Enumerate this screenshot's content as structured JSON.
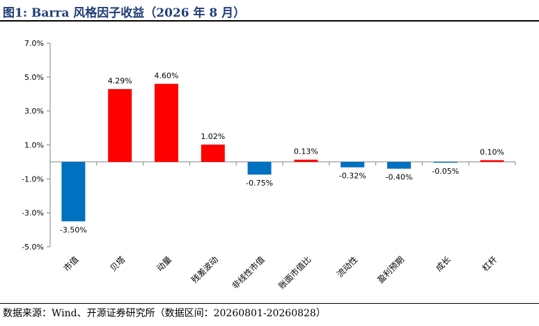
{
  "header": {
    "title": "图1:  Barra 风格因子收益（2026 年 8 月）"
  },
  "footer": {
    "source": "数据来源：Wind、开源证券研究所（数据区间：20260801-20260828）"
  },
  "colors": {
    "positive": "#ff0000",
    "negative": "#0070c0",
    "axis": "#808080"
  },
  "chart_data": {
    "type": "bar",
    "categories": [
      "市值",
      "贝塔",
      "动量",
      "残差波动",
      "非线性市值",
      "账面市值比",
      "流动性",
      "盈利预期",
      "成长",
      "杠杆"
    ],
    "values": [
      -3.5,
      4.29,
      4.6,
      1.02,
      -0.75,
      0.13,
      -0.32,
      -0.4,
      -0.05,
      0.1
    ],
    "data_labels": [
      "-3.50%",
      "4.29%",
      "4.60%",
      "1.02%",
      "-0.75%",
      "0.13%",
      "-0.32%",
      "-0.40%",
      "-0.05%",
      "0.10%"
    ],
    "ylim": [
      -5.0,
      7.0
    ],
    "yticks": [
      -5.0,
      -3.0,
      -1.0,
      1.0,
      3.0,
      5.0,
      7.0
    ],
    "ytick_labels": [
      "-5.0%",
      "-3.0%",
      "-1.0%",
      "1.0%",
      "3.0%",
      "5.0%",
      "7.0%"
    ],
    "grid": false,
    "legend": "none",
    "xlabel": "",
    "ylabel": ""
  }
}
